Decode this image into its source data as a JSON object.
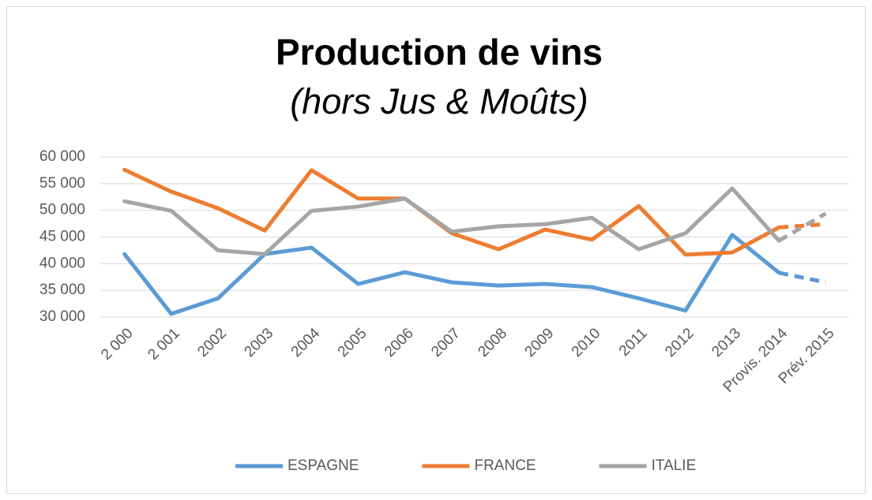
{
  "chart_data": {
    "type": "line",
    "title": "Production de vins",
    "subtitle": "(hors Jus & Moûts)",
    "categories": [
      "2 000",
      "2 001",
      "2002",
      "2003",
      "2004",
      "2005",
      "2006",
      "2007",
      "2008",
      "2009",
      "2010",
      "2011",
      "2012",
      "2013",
      "Provis. 2014",
      "Prév. 2015"
    ],
    "series": [
      {
        "name": "ESPAGNE",
        "color": "#5b9bd5",
        "values": [
          41800,
          30600,
          33500,
          41800,
          43000,
          36200,
          38400,
          36500,
          35900,
          36200,
          35600,
          33500,
          31200,
          45400,
          38300,
          36500
        ]
      },
      {
        "name": "FRANCE",
        "color": "#ed7d31",
        "values": [
          57600,
          53500,
          50400,
          46200,
          57500,
          52200,
          52200,
          45700,
          42700,
          46400,
          44500,
          50800,
          41700,
          42100,
          46800,
          47400
        ]
      },
      {
        "name": "ITALIE",
        "color": "#a5a5a5",
        "values": [
          51700,
          49900,
          42500,
          41800,
          49900,
          50700,
          52200,
          46000,
          47000,
          47400,
          48600,
          42700,
          45700,
          54100,
          44300,
          49400
        ]
      }
    ],
    "dashed_from": 14,
    "ylim": [
      30000,
      60000
    ],
    "yticks": [
      {
        "value": 30000,
        "label": "30 000"
      },
      {
        "value": 35000,
        "label": "35 000"
      },
      {
        "value": 40000,
        "label": "40 000"
      },
      {
        "value": 45000,
        "label": "45 000"
      },
      {
        "value": 50000,
        "label": "50 000"
      },
      {
        "value": 55000,
        "label": "55 000"
      },
      {
        "value": 60000,
        "label": "60 000"
      }
    ],
    "grid": true,
    "legend": "bottom"
  }
}
